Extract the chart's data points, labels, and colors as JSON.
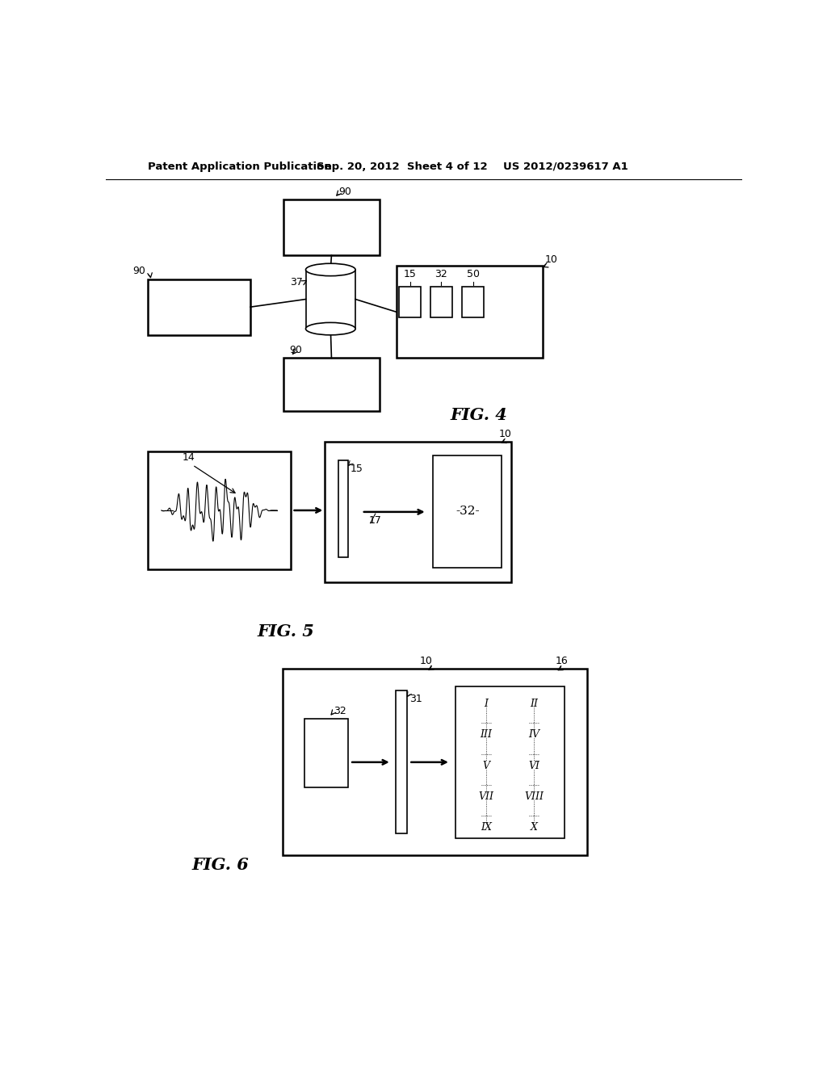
{
  "bg_color": "#ffffff",
  "header_left": "Patent Application Publication",
  "header_mid": "Sep. 20, 2012  Sheet 4 of 12",
  "header_right": "US 2012/0239617 A1",
  "fig4_label": "FIG. 4",
  "fig5_label": "FIG. 5",
  "fig6_label": "FIG. 6",
  "romans": [
    [
      "I",
      "II"
    ],
    [
      "III",
      "IV"
    ],
    [
      "V",
      "VI"
    ],
    [
      "VII",
      "VIII"
    ],
    [
      "IX",
      "X"
    ]
  ]
}
